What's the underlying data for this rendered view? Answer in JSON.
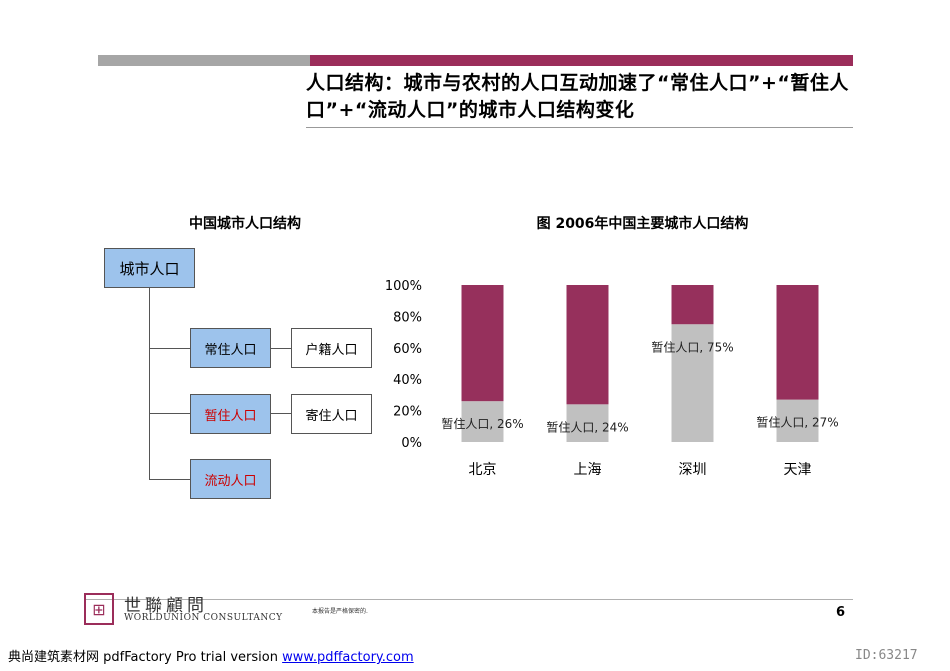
{
  "title": "人口结构：城市与农村的人口互动加速了“常住人口”+“暂住人口”+“流动人口”的城市人口结构变化",
  "colors": {
    "accent": "#9b2d5a",
    "gray_bar": "#a6a6a6",
    "box_blue": "#9dc3ec",
    "chart_gray": "#c0c0c0"
  },
  "diagram": {
    "title": "中国城市人口结构",
    "root": "城市人口",
    "nodes": [
      {
        "label": "常住人口",
        "note": "户籍人口"
      },
      {
        "label": "暂住人口",
        "note": "寄住人口"
      },
      {
        "label": "流动人口"
      }
    ]
  },
  "chart_data": {
    "type": "bar",
    "stacked": true,
    "title": "图 2006年中国主要城市人口结构",
    "categories": [
      "北京",
      "上海",
      "深圳",
      "天津"
    ],
    "series": [
      {
        "name": "暂住人口",
        "values": [
          26,
          24,
          75,
          27
        ],
        "color": "#c0c0c0"
      },
      {
        "values": [
          74,
          76,
          25,
          73
        ],
        "color": "#96305c"
      }
    ],
    "data_labels": [
      "暂住人口, 26%",
      "暂住人口, 24%",
      "暂住人口, 75%",
      "暂住人口, 27%"
    ],
    "yticks": [
      "0%",
      "20%",
      "40%",
      "60%",
      "80%",
      "100%"
    ],
    "ylim": [
      0,
      100
    ],
    "grid": false
  },
  "footer": {
    "logo_glyph": "⊞",
    "logo_cn": "世聯顧問",
    "logo_en": "WORLDUNION CONSULTANCY",
    "confidential": "本报告是严格保密的.",
    "page_number": "6",
    "watermark_prefix": "典尚建筑素材网 pdfFactory Pro trial version ",
    "watermark_link": "www.pdffactory.com",
    "id": "ID:63217"
  }
}
